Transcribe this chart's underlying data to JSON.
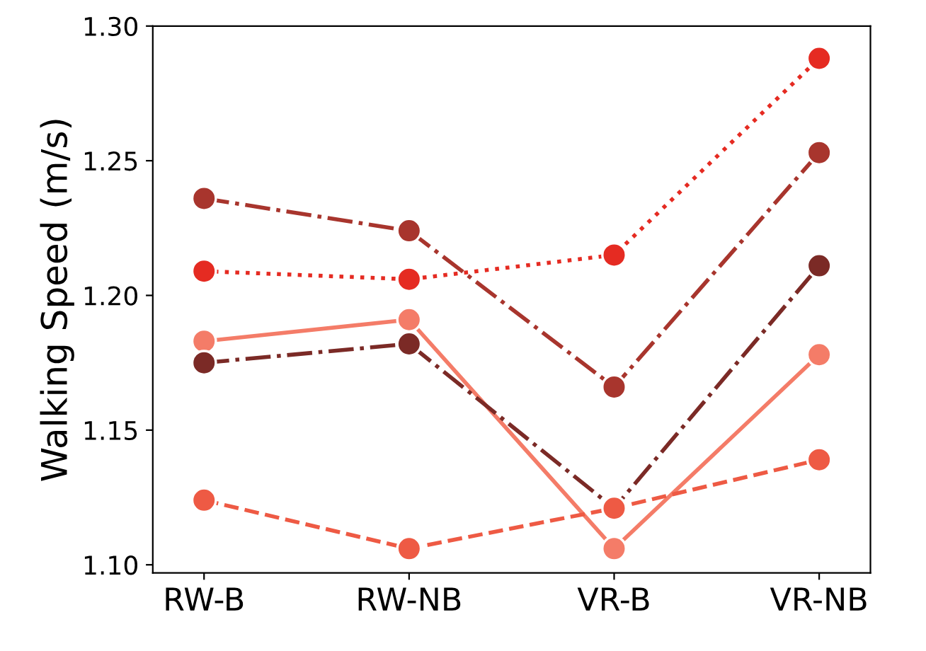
{
  "chart_data": {
    "type": "line",
    "ylabel": "Walking Speed (m/s)",
    "categories": [
      "RW-B",
      "RW-NB",
      "VR-B",
      "VR-NB"
    ],
    "ylim": [
      1.097,
      1.3
    ],
    "yticks": [
      {
        "value": 1.1,
        "label": "1.10"
      },
      1.15,
      {
        "value": 1.2,
        "label": "1.20"
      },
      1.25,
      {
        "value": 1.3,
        "label": "1.30"
      }
    ],
    "grid": false,
    "marker": "circle",
    "series": [
      {
        "color": "#a8352d",
        "line_style": "dashdot",
        "values": [
          1.236,
          1.224,
          1.166,
          1.253
        ]
      },
      {
        "color": "#e52b22",
        "line_style": "dotted",
        "values": [
          1.209,
          1.206,
          1.215,
          1.288
        ]
      },
      {
        "color": "#f47c68",
        "line_style": "solid",
        "values": [
          1.183,
          1.191,
          1.106,
          1.178
        ]
      },
      {
        "color": "#7b2a26",
        "line_style": "dashdot",
        "values": [
          1.175,
          1.182,
          1.121,
          1.211
        ]
      },
      {
        "color": "#ee5a44",
        "line_style": "dashed",
        "values": [
          1.124,
          1.106,
          1.121,
          1.139
        ]
      }
    ]
  }
}
